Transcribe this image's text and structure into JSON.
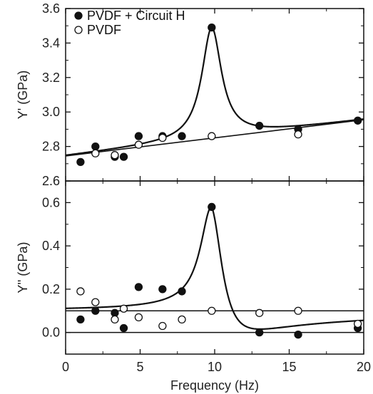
{
  "chart_data": [
    {
      "type": "scatter",
      "panel": "top",
      "ylabel": "Y' (GPa)",
      "ylim": [
        2.6,
        3.6
      ],
      "yticks": [
        "2.6",
        "2.8",
        "3.0",
        "3.2",
        "3.4",
        "3.6"
      ],
      "xlim": [
        0,
        20
      ],
      "legend": {
        "placement": "top-left",
        "entries": [
          {
            "name": "PVDF + Circuit H",
            "marker": "filled"
          },
          {
            "name": "PVDF",
            "marker": "open"
          }
        ]
      },
      "series": [
        {
          "name": "PVDF + Circuit H",
          "marker": "filled",
          "x": [
            1.0,
            2.0,
            3.3,
            3.9,
            4.9,
            6.5,
            7.8,
            9.8,
            13.0,
            15.6,
            19.6
          ],
          "y": [
            2.71,
            2.8,
            2.74,
            2.74,
            2.86,
            2.86,
            2.86,
            3.49,
            2.92,
            2.9,
            2.95
          ]
        },
        {
          "name": "PVDF",
          "marker": "open",
          "x": [
            2.0,
            3.3,
            4.9,
            6.5,
            9.8,
            15.6
          ],
          "y": [
            2.76,
            2.75,
            2.81,
            2.85,
            2.86,
            2.87
          ]
        }
      ],
      "fit_lines": [
        {
          "kind": "linear",
          "x": [
            0,
            20
          ],
          "y": [
            2.745,
            2.955
          ]
        },
        {
          "kind": "resonance",
          "baseline": "linear",
          "peak_x": 9.8,
          "peak_y": 3.49,
          "width": 0.8
        }
      ]
    },
    {
      "type": "scatter",
      "panel": "bottom",
      "ylabel": "Y'' (GPa)",
      "ylim": [
        -0.1,
        0.7
      ],
      "yticks": [
        "0.0",
        "0.2",
        "0.4",
        "0.6"
      ],
      "xlabel": "Frequency (Hz)",
      "xlim": [
        0,
        20
      ],
      "xticks": [
        "0",
        "5",
        "10",
        "15",
        "20"
      ],
      "series": [
        {
          "name": "PVDF + Circuit H",
          "marker": "filled",
          "x": [
            1.0,
            2.0,
            3.3,
            3.9,
            4.9,
            6.5,
            7.8,
            9.8,
            13.0,
            15.6,
            19.6
          ],
          "y": [
            0.06,
            0.1,
            0.09,
            0.02,
            0.21,
            0.2,
            0.19,
            0.58,
            0.0,
            -0.01,
            0.02
          ]
        },
        {
          "name": "PVDF",
          "marker": "open",
          "x": [
            1.0,
            2.0,
            3.3,
            3.9,
            4.9,
            6.5,
            7.8,
            9.8,
            13.0,
            15.6,
            19.6
          ],
          "y": [
            0.19,
            0.14,
            0.06,
            0.11,
            0.07,
            0.03,
            0.06,
            0.1,
            0.09,
            0.1,
            0.04
          ]
        }
      ],
      "fit_lines": [
        {
          "kind": "horizontal",
          "y": 0.1
        },
        {
          "kind": "horizontal",
          "y": 0.0
        },
        {
          "kind": "resonance_loss",
          "peak_x": 9.8,
          "peak_y": 0.58,
          "width": 0.9
        }
      ]
    }
  ]
}
